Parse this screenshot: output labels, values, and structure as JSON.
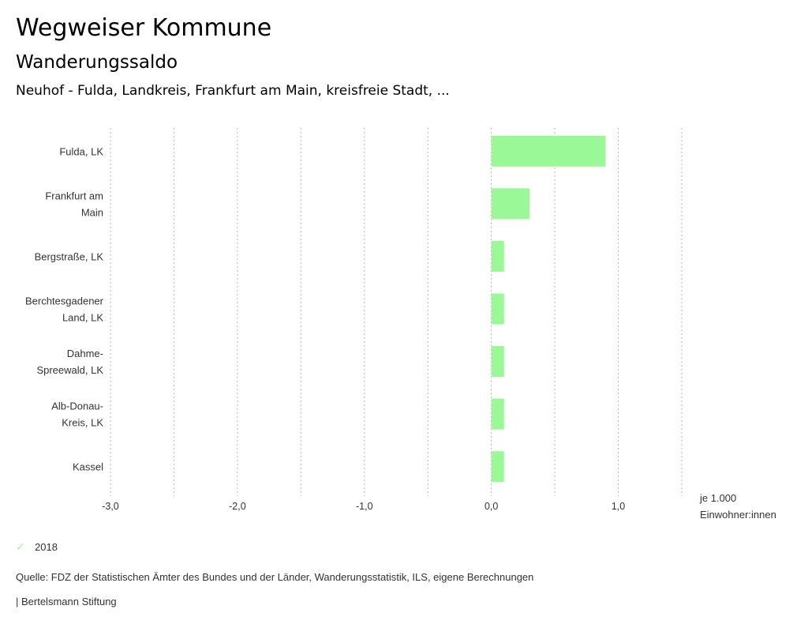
{
  "header": {
    "title": "Wegweiser Kommune",
    "subtitle": "Wanderungssaldo",
    "regions": "Neuhof - Fulda, Landkreis, Frankfurt am Main, kreisfreie Stadt, ..."
  },
  "chart_data": {
    "type": "bar",
    "orientation": "horizontal",
    "title": "Wanderungssaldo",
    "categories": [
      [
        "Fulda, LK"
      ],
      [
        "Frankfurt am",
        "Main"
      ],
      [
        "Bergstraße, LK"
      ],
      [
        "Berchtesgadener",
        "Land, LK"
      ],
      [
        "Dahme-",
        "Spreewald, LK"
      ],
      [
        "Alb-Donau-",
        "Kreis, LK"
      ],
      [
        "Kassel"
      ]
    ],
    "series": [
      {
        "name": "2018",
        "color": "#9bf896",
        "values": [
          0.9,
          0.3,
          0.1,
          0.1,
          0.1,
          0.1,
          0.1
        ]
      }
    ],
    "xlim": [
      -3.0,
      1.5
    ],
    "xticks": [
      -3.0,
      -2.0,
      -1.0,
      0.0,
      1.0
    ],
    "xtick_labels": [
      "-3,0",
      "-2,0",
      "-1,0",
      "0,0",
      "1,0"
    ],
    "gridlines": [
      -3.0,
      -2.5,
      -2.0,
      -1.5,
      -1.0,
      -0.5,
      0.0,
      0.5,
      1.0,
      1.5
    ],
    "grid": true,
    "xlabel": [
      "je 1.000",
      "Einwohner:innen"
    ],
    "legend_position": "bottom-left"
  },
  "legend": {
    "items": [
      {
        "label": "2018",
        "icon": "check-icon",
        "color": "#9bf896"
      }
    ]
  },
  "footer": {
    "source": "Quelle: FDZ der Statistischen Ämter des Bundes und der Länder, Wanderungsstatistik, ILS, eigene Berechnungen",
    "credit": "| Bertelsmann Stiftung"
  }
}
